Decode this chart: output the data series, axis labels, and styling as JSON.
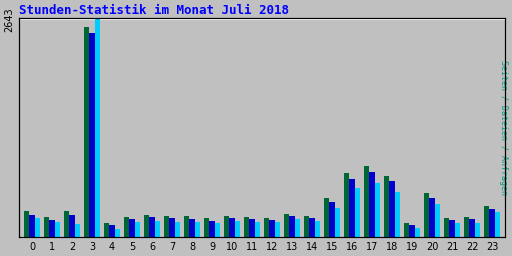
{
  "title": "Stunden-Statistik im Monat Juli 2018",
  "ylabel": "Seiten / Dateien / Anfragen",
  "xlabel_ticks": [
    0,
    1,
    2,
    3,
    4,
    5,
    6,
    7,
    8,
    9,
    10,
    11,
    12,
    13,
    14,
    15,
    16,
    17,
    18,
    19,
    20,
    21,
    22,
    23
  ],
  "ymax": 2643,
  "ytick": 2643,
  "bg_color": "#c0c0c0",
  "title_color": "#0000ff",
  "ylabel_color": "#009980",
  "series_colors": [
    "#006633",
    "#0000cc",
    "#00ccff"
  ],
  "seiten": [
    320,
    240,
    310,
    2550,
    170,
    240,
    265,
    255,
    250,
    230,
    260,
    240,
    235,
    280,
    260,
    475,
    780,
    860,
    740,
    165,
    530,
    230,
    245,
    380
  ],
  "dateien": [
    270,
    210,
    270,
    2480,
    145,
    215,
    240,
    225,
    220,
    200,
    235,
    215,
    210,
    250,
    230,
    430,
    710,
    790,
    680,
    145,
    475,
    205,
    220,
    345
  ],
  "anfragen": [
    235,
    185,
    155,
    2643,
    100,
    185,
    200,
    185,
    185,
    170,
    195,
    185,
    185,
    215,
    200,
    350,
    590,
    650,
    545,
    115,
    395,
    170,
    175,
    300
  ]
}
